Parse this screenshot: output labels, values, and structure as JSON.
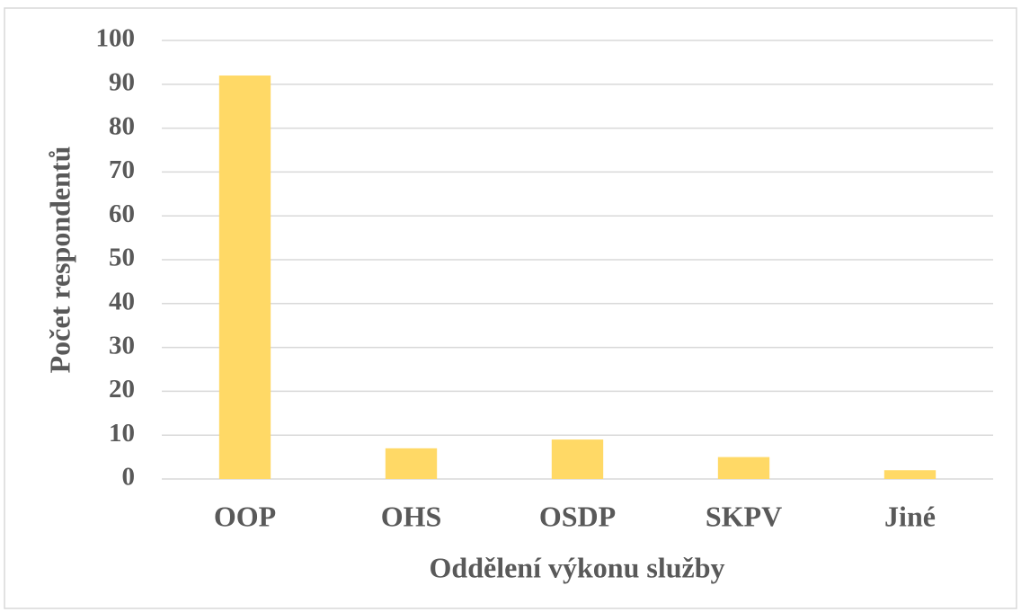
{
  "chart_data": {
    "type": "bar",
    "x_label": "Oddělení výkonu služby",
    "y_label": "Počet respondentů",
    "categories": [
      "OOP",
      "OHS",
      "OSDP",
      "SKPV",
      "Jiné"
    ],
    "values": [
      92,
      7,
      9,
      5,
      2
    ],
    "color": "#ffd966",
    "ylim": [
      0,
      100
    ],
    "yticks": [
      0,
      10,
      20,
      30,
      40,
      50,
      60,
      70,
      80,
      90,
      100
    ],
    "grid": true
  }
}
